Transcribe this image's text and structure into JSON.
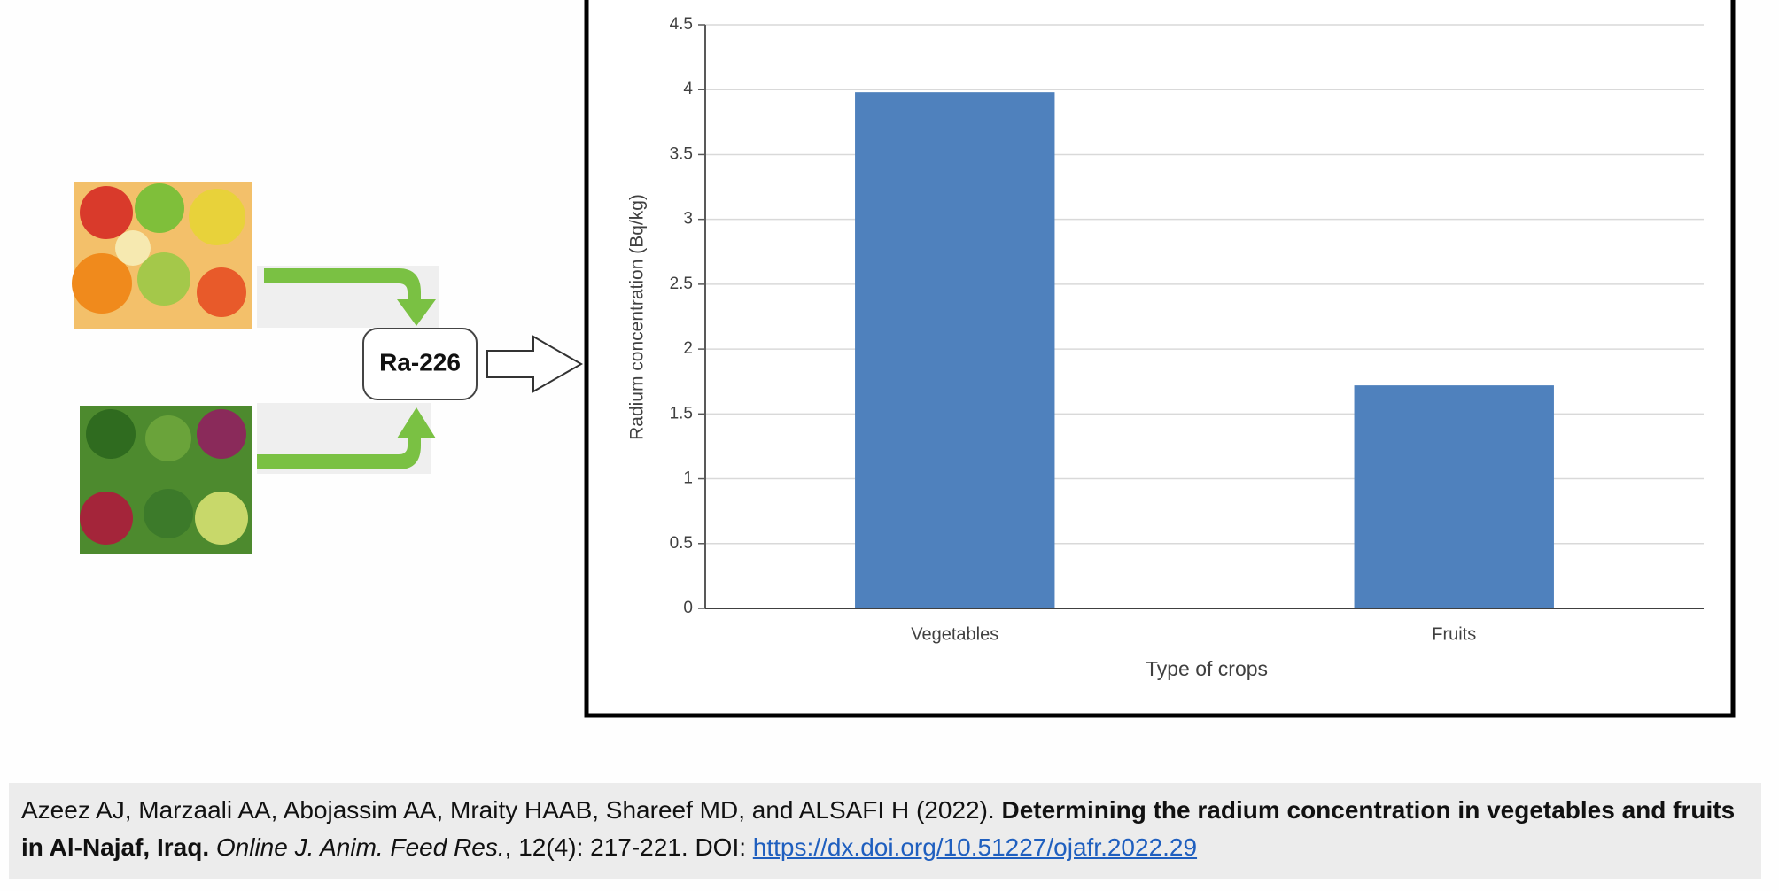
{
  "chart_data": {
    "type": "bar",
    "categories": [
      "Vegetables",
      "Fruits"
    ],
    "values": [
      3.98,
      1.72
    ],
    "color": "#4f81bd",
    "ylim": [
      0,
      4.5
    ],
    "yticks": [
      0,
      0.5,
      1,
      1.5,
      2,
      2.5,
      3,
      3.5,
      4,
      4.5
    ],
    "grid": true,
    "x_label": "Type of crops",
    "y_label": "Radium concentration (Bq/kg)"
  },
  "diagram": {
    "label": "Ra-226"
  },
  "citation": {
    "authors": "Azeez AJ, Marzaali AA, Abojassim AA, Mraity HAAB, Shareef MD, and ALSAFI H (2022).",
    "title": "Determining the radium concentration in vegetables and fruits in Al-Najaf, Iraq.",
    "journal": "Online J. Anim. Feed Res.",
    "details": ", 12(4): 217-221. DOI:",
    "doi": "https://dx.doi.org/10.51227/ojafr.2022.29"
  }
}
